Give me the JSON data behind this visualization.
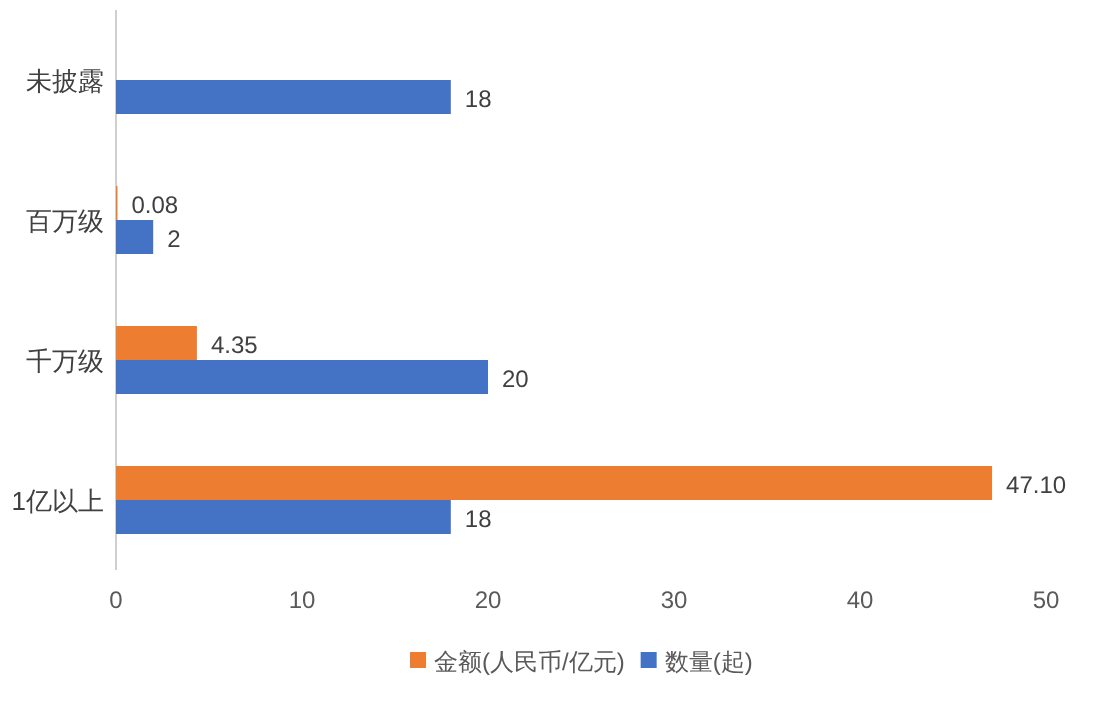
{
  "chart_data": {
    "type": "bar",
    "orientation": "horizontal",
    "categories": [
      "未披露",
      "百万级",
      "千万级",
      "1亿以上"
    ],
    "series": [
      {
        "name": "金额(人民币/亿元)",
        "color": "#ed7d31",
        "values": [
          null,
          0.08,
          4.35,
          47.1
        ],
        "value_labels": [
          null,
          "0.08",
          "4.35",
          "47.10"
        ]
      },
      {
        "name": "数量(起)",
        "color": "#4472c4",
        "values": [
          18,
          2,
          20,
          18
        ],
        "value_labels": [
          "18",
          "2",
          "20",
          "18"
        ]
      }
    ],
    "xlim": [
      0,
      50
    ],
    "xticks": [
      0,
      10,
      20,
      30,
      40,
      50
    ],
    "grid": false,
    "legend": "bottom"
  }
}
